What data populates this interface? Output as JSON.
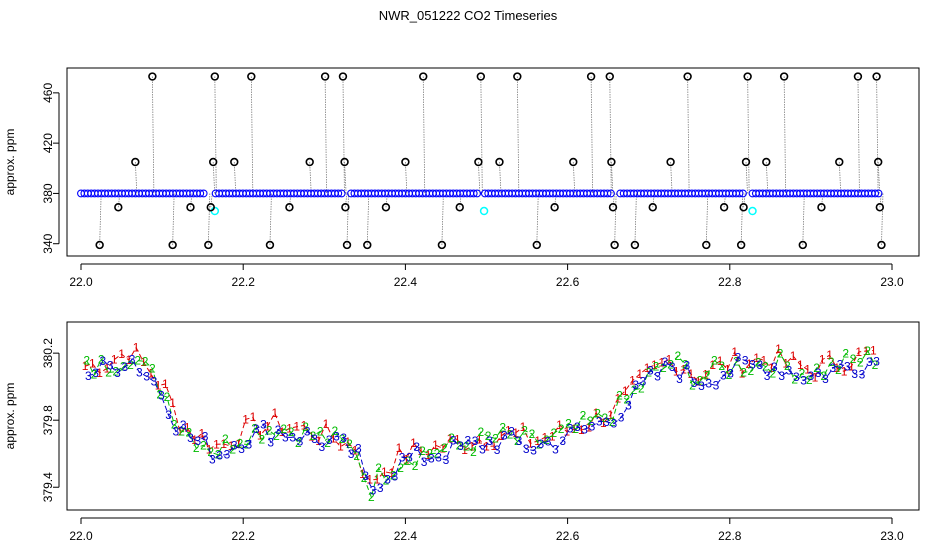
{
  "title": "NWR_051222  CO2 Timeseries",
  "colors": {
    "flag": "#000000",
    "raw_points": "#0000ff",
    "raw_points_fill": "#4aa0ff",
    "highlight": "#00ffff",
    "series1": "#dd0000",
    "series2": "#00bb00",
    "series3": "#0000cc",
    "drop_line": "#808080"
  },
  "chart_data": [
    {
      "type": "scatter",
      "ylabel": "approx. ppm",
      "xlabel": "",
      "xlim": [
        22.0,
        23.0
      ],
      "ylim": [
        335,
        475
      ],
      "x_ticks": [
        "22.0",
        "22.2",
        "22.4",
        "22.6",
        "22.8",
        "23.0"
      ],
      "y_ticks": [
        "340",
        "380",
        "420",
        "460"
      ],
      "baseline": 380,
      "flagged_points": [
        {
          "x": 0.023,
          "y": 339
        },
        {
          "x": 0.046,
          "y": 369
        },
        {
          "x": 0.067,
          "y": 405
        },
        {
          "x": 0.088,
          "y": 473
        },
        {
          "x": 0.113,
          "y": 339
        },
        {
          "x": 0.135,
          "y": 369
        },
        {
          "x": 0.157,
          "y": 339
        },
        {
          "x": 0.16,
          "y": 369
        },
        {
          "x": 0.163,
          "y": 405
        },
        {
          "x": 0.165,
          "y": 473
        },
        {
          "x": 0.189,
          "y": 405
        },
        {
          "x": 0.21,
          "y": 473
        },
        {
          "x": 0.233,
          "y": 339
        },
        {
          "x": 0.257,
          "y": 369
        },
        {
          "x": 0.282,
          "y": 405
        },
        {
          "x": 0.301,
          "y": 473
        },
        {
          "x": 0.323,
          "y": 473
        },
        {
          "x": 0.325,
          "y": 405
        },
        {
          "x": 0.326,
          "y": 369
        },
        {
          "x": 0.328,
          "y": 339
        },
        {
          "x": 0.353,
          "y": 339
        },
        {
          "x": 0.376,
          "y": 369
        },
        {
          "x": 0.4,
          "y": 405
        },
        {
          "x": 0.422,
          "y": 473
        },
        {
          "x": 0.445,
          "y": 339
        },
        {
          "x": 0.467,
          "y": 369
        },
        {
          "x": 0.49,
          "y": 405
        },
        {
          "x": 0.493,
          "y": 473
        },
        {
          "x": 0.516,
          "y": 405
        },
        {
          "x": 0.538,
          "y": 473
        },
        {
          "x": 0.562,
          "y": 339
        },
        {
          "x": 0.584,
          "y": 369
        },
        {
          "x": 0.607,
          "y": 405
        },
        {
          "x": 0.629,
          "y": 473
        },
        {
          "x": 0.652,
          "y": 473
        },
        {
          "x": 0.654,
          "y": 405
        },
        {
          "x": 0.656,
          "y": 369
        },
        {
          "x": 0.658,
          "y": 339
        },
        {
          "x": 0.683,
          "y": 339
        },
        {
          "x": 0.705,
          "y": 369
        },
        {
          "x": 0.727,
          "y": 405
        },
        {
          "x": 0.748,
          "y": 473
        },
        {
          "x": 0.771,
          "y": 339
        },
        {
          "x": 0.793,
          "y": 369
        },
        {
          "x": 0.814,
          "y": 339
        },
        {
          "x": 0.817,
          "y": 369
        },
        {
          "x": 0.82,
          "y": 405
        },
        {
          "x": 0.822,
          "y": 473
        },
        {
          "x": 0.845,
          "y": 405
        },
        {
          "x": 0.867,
          "y": 473
        },
        {
          "x": 0.89,
          "y": 339
        },
        {
          "x": 0.913,
          "y": 369
        },
        {
          "x": 0.935,
          "y": 405
        },
        {
          "x": 0.958,
          "y": 473
        },
        {
          "x": 0.981,
          "y": 473
        },
        {
          "x": 0.983,
          "y": 405
        },
        {
          "x": 0.985,
          "y": 369
        },
        {
          "x": 0.987,
          "y": 339
        }
      ],
      "highlight_points": [
        {
          "x": 0.165,
          "y": 366
        },
        {
          "x": 0.497,
          "y": 366
        },
        {
          "x": 0.828,
          "y": 366
        }
      ],
      "baseline_segments": [
        [
          0.0,
          0.155
        ],
        [
          0.166,
          0.325
        ],
        [
          0.333,
          0.49
        ],
        [
          0.498,
          0.655
        ],
        [
          0.665,
          0.82
        ],
        [
          0.828,
          0.985
        ]
      ]
    },
    {
      "type": "line",
      "ylabel": "approx. ppm",
      "xlabel": "",
      "xlim": [
        22.0,
        23.0
      ],
      "ylim": [
        379.3,
        380.35
      ],
      "x_ticks": [
        "22.0",
        "22.2",
        "22.4",
        "22.6",
        "22.8",
        "23.0"
      ],
      "y_ticks": [
        "379.4",
        "379.8",
        "380.2"
      ],
      "series": [
        {
          "marker": "1"
        },
        {
          "marker": "2"
        },
        {
          "marker": "3"
        }
      ],
      "trend": [
        [
          0.0,
          380.1
        ],
        [
          0.03,
          380.12
        ],
        [
          0.06,
          380.2
        ],
        [
          0.09,
          380.05
        ],
        [
          0.105,
          379.95
        ],
        [
          0.12,
          379.78
        ],
        [
          0.14,
          379.7
        ],
        [
          0.17,
          379.62
        ],
        [
          0.2,
          379.72
        ],
        [
          0.24,
          379.76
        ],
        [
          0.28,
          379.72
        ],
        [
          0.31,
          379.68
        ],
        [
          0.34,
          379.62
        ],
        [
          0.355,
          379.38
        ],
        [
          0.37,
          379.48
        ],
        [
          0.4,
          379.58
        ],
        [
          0.44,
          379.62
        ],
        [
          0.48,
          379.66
        ],
        [
          0.52,
          379.7
        ],
        [
          0.56,
          379.66
        ],
        [
          0.6,
          379.72
        ],
        [
          0.64,
          379.8
        ],
        [
          0.67,
          379.9
        ],
        [
          0.7,
          380.05
        ],
        [
          0.73,
          380.15
        ],
        [
          0.76,
          380.05
        ],
        [
          0.8,
          380.12
        ],
        [
          0.85,
          380.15
        ],
        [
          0.9,
          380.08
        ],
        [
          0.95,
          380.15
        ],
        [
          0.985,
          380.18
        ]
      ]
    }
  ]
}
